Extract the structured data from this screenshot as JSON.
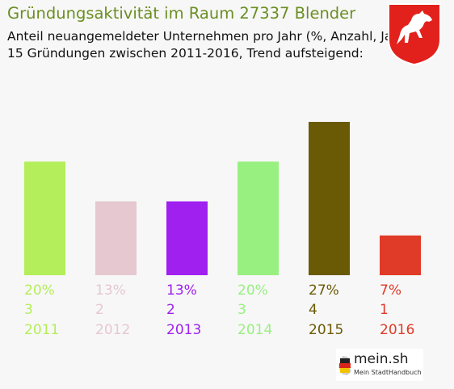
{
  "header": {
    "title": "Gründungsaktivität im Raum 27337 Blender",
    "subtitle_line1": "Anteil neuangemeldeter Unternehmen pro Jahr (%, Anzahl, Jahr)",
    "subtitle_line2": "15 Gründungen zwischen 2011-2016, Trend aufsteigend:"
  },
  "crest": {
    "icon": "lower-saxony-horse-crest-icon",
    "color": "#e2211c"
  },
  "footer": {
    "brand": "mein.sh",
    "tagline": "Mein StadtHandbuch",
    "icon": "germany-map-icon"
  },
  "chart_data": {
    "type": "bar",
    "categories": [
      "2011",
      "2012",
      "2013",
      "2014",
      "2015",
      "2016"
    ],
    "series": [
      {
        "values": [
          20,
          13,
          13,
          20,
          27,
          7
        ]
      }
    ],
    "counts": [
      3,
      2,
      2,
      3,
      4,
      1
    ],
    "percent_labels": [
      "20%",
      "13%",
      "13%",
      "20%",
      "27%",
      "7%"
    ],
    "count_labels": [
      "3",
      "2",
      "2",
      "3",
      "4",
      "1"
    ],
    "colors": [
      "#b4ee5a",
      "#e6c8d0",
      "#a020f0",
      "#98f080",
      "#6b5a05",
      "#e03a28"
    ],
    "ylim": [
      0,
      27
    ],
    "grid": false,
    "legend": "none"
  }
}
